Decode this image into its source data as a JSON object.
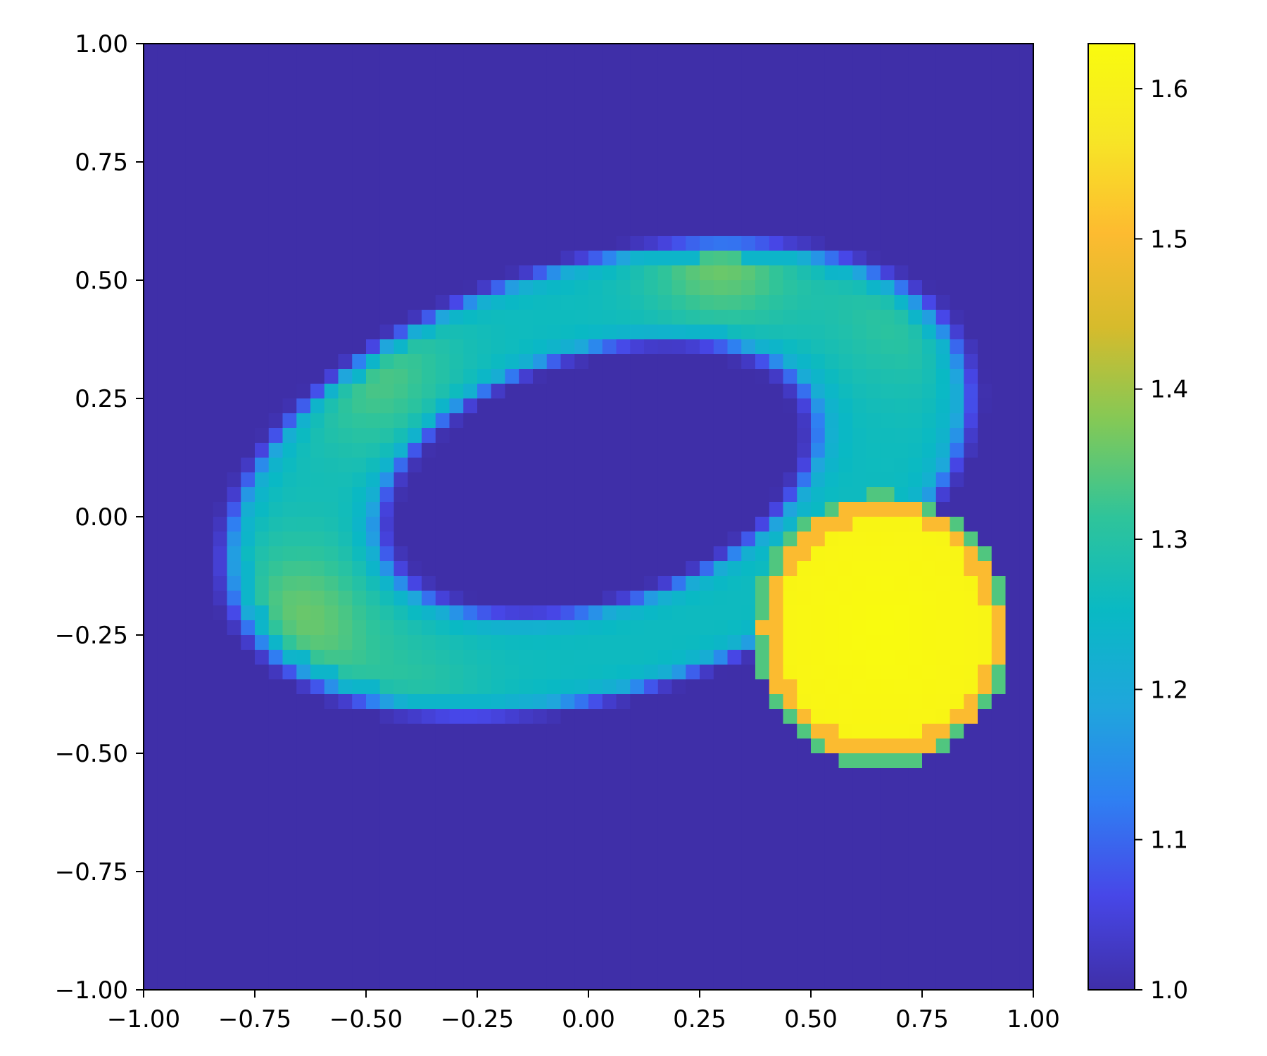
{
  "chart_data": {
    "type": "heatmap",
    "title": "",
    "xlabel": "",
    "ylabel": "",
    "xlim": [
      -1.0,
      1.0
    ],
    "ylim": [
      -1.0,
      1.0
    ],
    "grid": false,
    "grid_resolution": 64,
    "background_value": 1.0,
    "x_ticks": [
      -1.0,
      -0.75,
      -0.5,
      -0.25,
      0.0,
      0.25,
      0.5,
      0.75,
      1.0
    ],
    "x_tick_labels": [
      "−1.00",
      "−0.75",
      "−0.50",
      "−0.25",
      "0.00",
      "0.25",
      "0.50",
      "0.75",
      "1.00"
    ],
    "y_ticks": [
      1.0,
      0.75,
      0.5,
      0.25,
      0.0,
      -0.25,
      -0.5,
      -0.75,
      -1.0
    ],
    "y_tick_labels": [
      "1.00",
      "0.75",
      "0.50",
      "0.25",
      "0.00",
      "−0.25",
      "−0.50",
      "−0.75",
      "−1.00"
    ],
    "ring": {
      "description": "tilted elliptical ring of elevated values",
      "center": [
        0.02,
        0.08
      ],
      "radius_x": 0.68,
      "radius_y": 0.36,
      "rotation_deg": 16,
      "thickness": 0.16,
      "base_value": 1.26,
      "hotspots": [
        {
          "x": 0.3,
          "y": 0.58,
          "value": 1.38
        },
        {
          "x": -0.48,
          "y": 0.31,
          "value": 1.34
        },
        {
          "x": -0.65,
          "y": -0.22,
          "value": 1.36
        },
        {
          "x": 0.72,
          "y": 0.45,
          "value": 1.32
        },
        {
          "x": -0.4,
          "y": -0.42,
          "value": 1.31
        }
      ]
    },
    "disk": {
      "description": "bright circular inclusion",
      "center": [
        0.66,
        -0.24
      ],
      "radius": 0.27,
      "value": 1.63,
      "edge_value": 1.5
    },
    "colorbar": {
      "colormap": "parula",
      "min": 1.0,
      "max": 1.63,
      "ticks": [
        1.0,
        1.1,
        1.2,
        1.3,
        1.4,
        1.5,
        1.6
      ],
      "tick_labels": [
        "1.0",
        "1.1",
        "1.2",
        "1.3",
        "1.4",
        "1.5",
        "1.6"
      ],
      "colors": [
        "#3f2fa8",
        "#4747e8",
        "#2f7ff2",
        "#1fa6dc",
        "#09b9c4",
        "#2fc49a",
        "#82c957",
        "#d6bb2c",
        "#fdbb30",
        "#f7e626",
        "#f9fb0e"
      ]
    }
  }
}
